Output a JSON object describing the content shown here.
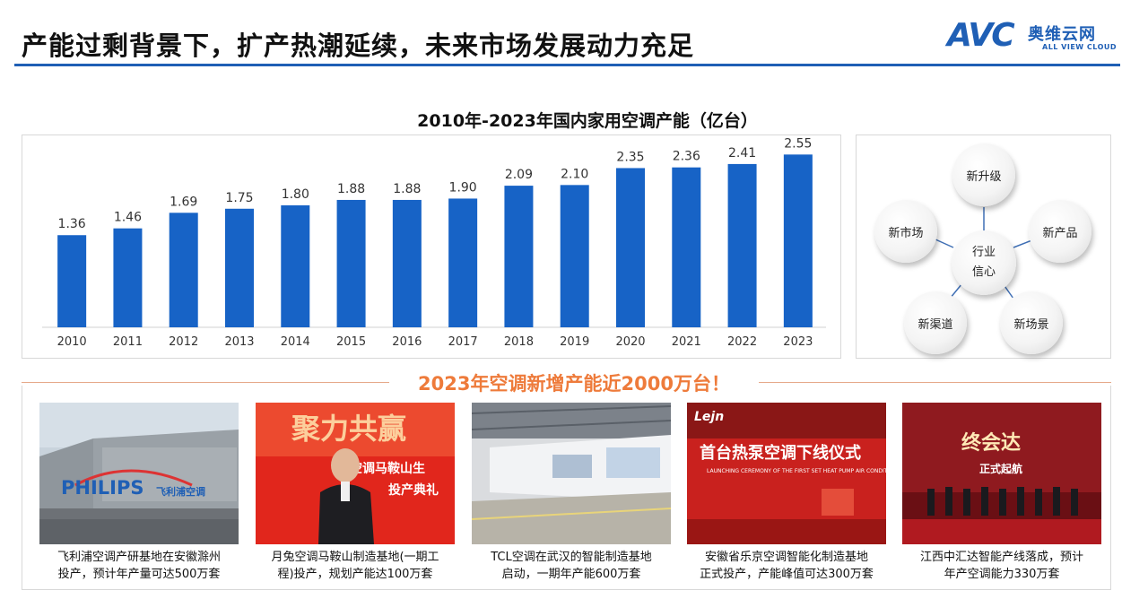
{
  "header": {
    "title": "产能过剩背景下，扩产热潮延续，未来市场发展动力充足",
    "logo_mark": "AVC",
    "logo_cn": "奥维云网",
    "logo_en": "ALL VIEW CLOUD",
    "accent_color": "#1f5fb5"
  },
  "chart_data": {
    "type": "bar",
    "title": "2010年-2023年国内家用空调产能（亿台）",
    "categories": [
      "2010",
      "2011",
      "2012",
      "2013",
      "2014",
      "2015",
      "2016",
      "2017",
      "2018",
      "2019",
      "2020",
      "2021",
      "2022",
      "2023"
    ],
    "values": [
      1.36,
      1.46,
      1.69,
      1.75,
      1.8,
      1.88,
      1.88,
      1.9,
      2.09,
      2.1,
      2.35,
      2.36,
      2.41,
      2.55
    ],
    "value_labels": [
      "1.36",
      "1.46",
      "1.69",
      "1.75",
      "1.80",
      "1.88",
      "1.88",
      "1.90",
      "2.09",
      "2.10",
      "2.35",
      "2.36",
      "2.41",
      "2.55"
    ],
    "ylim": [
      0,
      2.7
    ],
    "bar_color": "#1763c6",
    "grid": false,
    "legend": "none"
  },
  "radial": {
    "center_line1": "行业",
    "center_line2": "信心",
    "nodes": [
      "新升级",
      "新产品",
      "新场景",
      "新渠道",
      "新市场"
    ],
    "connector_color": "#3f6fb5"
  },
  "banner": {
    "text": "2023年空调新增产能近2000万台！",
    "color": "#ee7b3b"
  },
  "photos": [
    {
      "icon": "philips-plant-photo",
      "caption_line1": "飞利浦空调产研基地在安徽滁州",
      "caption_line2": "投产，预计年产量可达500万套",
      "overlay": "PHILIPS 飞利浦空调"
    },
    {
      "icon": "yuetu-ceremony-photo",
      "caption_line1": "月兔空调马鞍山制造基地(一期工",
      "caption_line2": "程)投产，规划产能达100万套",
      "overlay": "聚力共赢 空调马鞍山生 投产典礼"
    },
    {
      "icon": "tcl-factory-photo",
      "caption_line1": "TCL空调在武汉的智能制造基地",
      "caption_line2": "启动，一期年产能600万套",
      "overlay": ""
    },
    {
      "icon": "lejn-ceremony-photo",
      "caption_line1": "安徽省乐京空调智能化制造基地",
      "caption_line2": "正式投产，产能峰值可达300万套",
      "overlay": "首台热泵空调下线仪式"
    },
    {
      "icon": "zhonghuida-ceremony-photo",
      "caption_line1": "江西中汇达智能产线落成，预计",
      "caption_line2": "年产空调能力330万套",
      "overlay": "终会达 正式起航"
    }
  ]
}
